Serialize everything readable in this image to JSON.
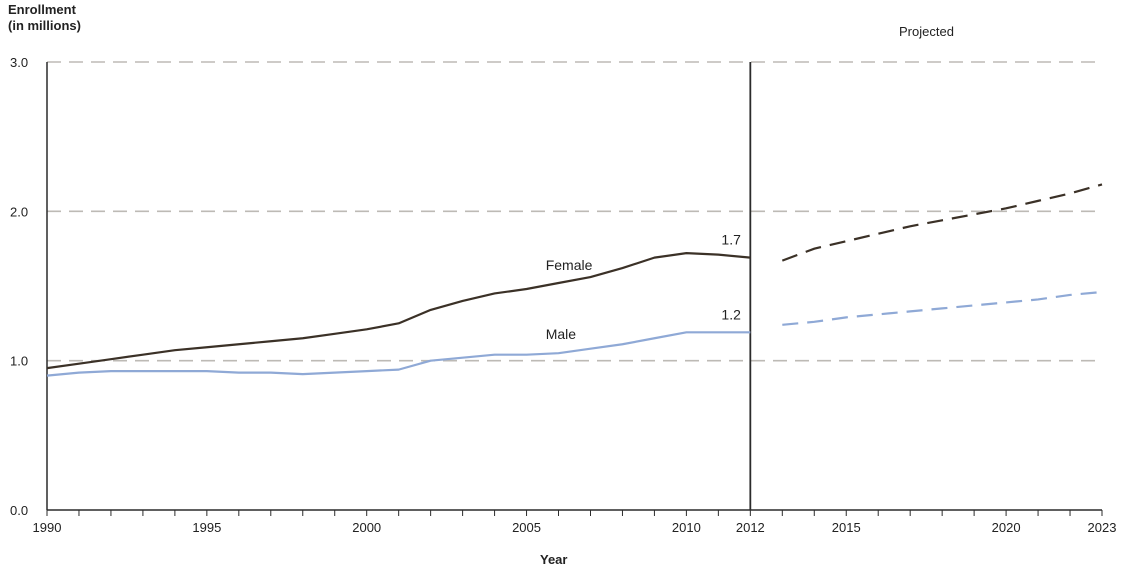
{
  "chart_data": {
    "type": "line",
    "ylabel_line1": "Enrollment",
    "ylabel_line2": "(in millions)",
    "xlabel": "Year",
    "projected_label": "Projected",
    "ylim": [
      0,
      3
    ],
    "xlim": [
      1990,
      2023
    ],
    "y_ticks": [
      "0.0",
      "1.0",
      "2.0",
      "3.0"
    ],
    "x_tick_labels": [
      {
        "year": 1990,
        "label": "1990"
      },
      {
        "year": 1995,
        "label": "1995"
      },
      {
        "year": 2000,
        "label": "2000"
      },
      {
        "year": 2005,
        "label": "2005"
      },
      {
        "year": 2010,
        "label": "2010"
      },
      {
        "year": 2012,
        "label": "2012"
      },
      {
        "year": 2015,
        "label": "2015"
      },
      {
        "year": 2020,
        "label": "2020"
      },
      {
        "year": 2023,
        "label": "2023"
      }
    ],
    "grid": "dashed horizontal",
    "projection_start_year": 2012,
    "series": [
      {
        "name": "Female",
        "color": "#3b3127",
        "end_label": "1.7",
        "actual": {
          "x": [
            1990,
            1991,
            1992,
            1993,
            1994,
            1995,
            1996,
            1997,
            1998,
            1999,
            2000,
            2001,
            2002,
            2003,
            2004,
            2005,
            2006,
            2007,
            2008,
            2009,
            2010,
            2011,
            2012
          ],
          "y": [
            0.95,
            0.98,
            1.01,
            1.04,
            1.07,
            1.09,
            1.11,
            1.13,
            1.15,
            1.18,
            1.21,
            1.25,
            1.34,
            1.4,
            1.45,
            1.48,
            1.52,
            1.56,
            1.62,
            1.69,
            1.72,
            1.71,
            1.69
          ]
        },
        "projected": {
          "x": [
            2013,
            2014,
            2015,
            2016,
            2017,
            2018,
            2019,
            2020,
            2021,
            2022,
            2023
          ],
          "y": [
            1.67,
            1.75,
            1.8,
            1.85,
            1.9,
            1.94,
            1.98,
            2.02,
            2.07,
            2.12,
            2.18
          ]
        }
      },
      {
        "name": "Male",
        "color": "#8fa9d6",
        "end_label": "1.2",
        "actual": {
          "x": [
            1990,
            1991,
            1992,
            1993,
            1994,
            1995,
            1996,
            1997,
            1998,
            1999,
            2000,
            2001,
            2002,
            2003,
            2004,
            2005,
            2006,
            2007,
            2008,
            2009,
            2010,
            2011,
            2012
          ],
          "y": [
            0.9,
            0.92,
            0.93,
            0.93,
            0.93,
            0.93,
            0.92,
            0.92,
            0.91,
            0.92,
            0.93,
            0.94,
            1.0,
            1.02,
            1.04,
            1.04,
            1.05,
            1.08,
            1.11,
            1.15,
            1.19,
            1.19,
            1.19
          ]
        },
        "projected": {
          "x": [
            2013,
            2014,
            2015,
            2016,
            2017,
            2018,
            2019,
            2020,
            2021,
            2022,
            2023
          ],
          "y": [
            1.24,
            1.26,
            1.29,
            1.31,
            1.33,
            1.35,
            1.37,
            1.39,
            1.41,
            1.44,
            1.46
          ]
        }
      }
    ]
  }
}
